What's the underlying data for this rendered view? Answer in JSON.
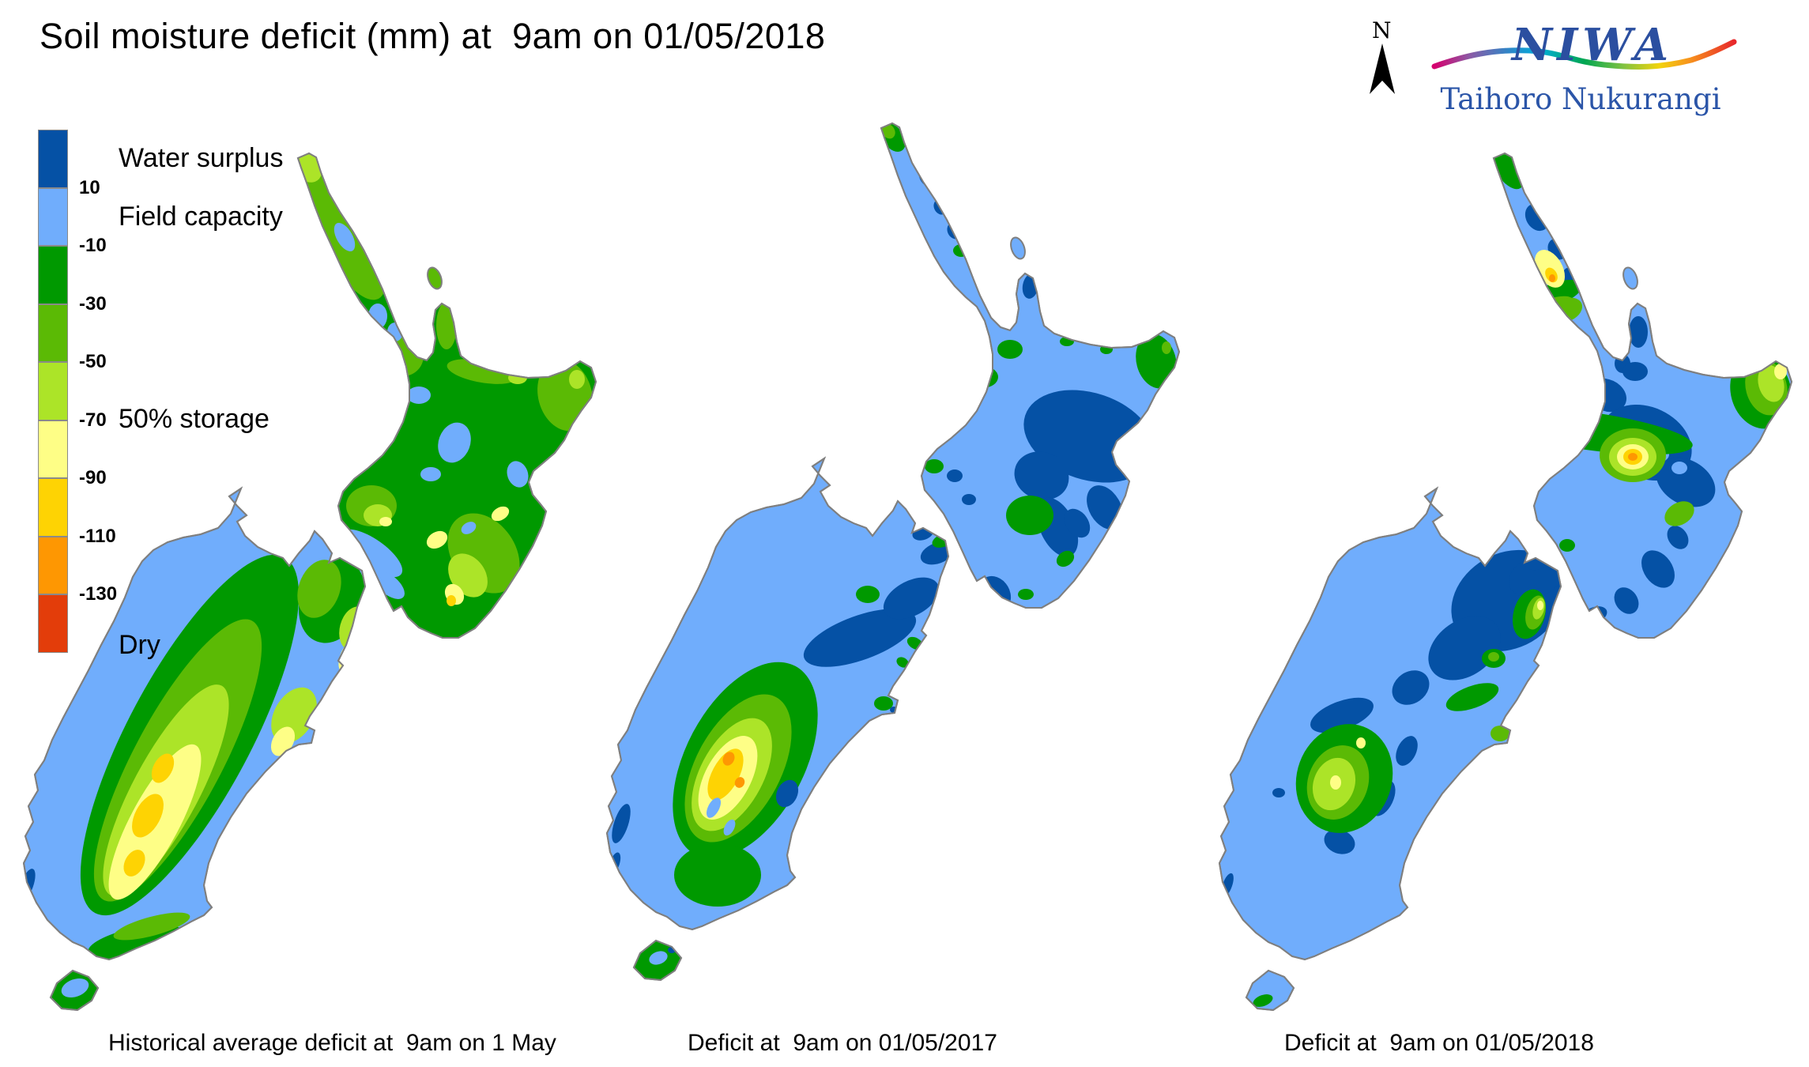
{
  "title": "Soil moisture deficit (mm) at  9am on 01/05/2018",
  "logo": {
    "name": "NIWA",
    "subtitle": "Taihoro Nukurangi"
  },
  "north_arrow": {
    "label": "N"
  },
  "legend": {
    "ticks": [
      "10",
      "-10",
      "-30",
      "-50",
      "-70",
      "-90",
      "-110",
      "-130"
    ],
    "bands": [
      {
        "name": "water-surplus",
        "color": "#0551a5",
        "range": "> 10"
      },
      {
        "name": "field-capacity",
        "color": "#70adfc",
        "range": "10 to -10"
      },
      {
        "name": "deficit-10-30",
        "color": "#009900",
        "range": "-10 to -30"
      },
      {
        "name": "deficit-30-50",
        "color": "#5bba05",
        "range": "-30 to -50"
      },
      {
        "name": "deficit-50-70",
        "color": "#ace428",
        "range": "-50 to -70"
      },
      {
        "name": "deficit-70-90",
        "color": "#fefe86",
        "range": "-70 to -90"
      },
      {
        "name": "deficit-90-110",
        "color": "#fed303",
        "range": "-90 to -110"
      },
      {
        "name": "deficit-110-130",
        "color": "#fe9702",
        "range": "-110 to -130"
      },
      {
        "name": "dry",
        "color": "#e33d0a",
        "range": "< -130"
      }
    ],
    "annotations": {
      "water_surplus": "Water surplus",
      "field_capacity": "Field capacity",
      "half_storage": "50% storage",
      "dry": "Dry"
    }
  },
  "maps": [
    {
      "caption": "Historical average deficit at  9am on 1 May"
    },
    {
      "caption": "Deficit at  9am on 01/05/2017"
    },
    {
      "caption": "Deficit at  9am on 01/05/2018"
    }
  ],
  "palette": {
    "coastline": "#7f7f7f",
    "background": "#ffffff",
    "logo_blue": "#2b4fa0"
  }
}
